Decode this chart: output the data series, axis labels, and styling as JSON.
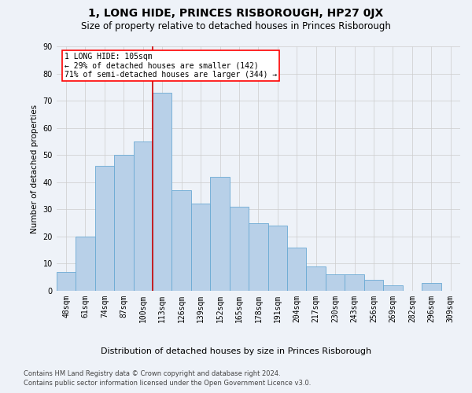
{
  "title": "1, LONG HIDE, PRINCES RISBOROUGH, HP27 0JX",
  "subtitle": "Size of property relative to detached houses in Princes Risborough",
  "xlabel": "Distribution of detached houses by size in Princes Risborough",
  "ylabel": "Number of detached properties",
  "footnote1": "Contains HM Land Registry data © Crown copyright and database right 2024.",
  "footnote2": "Contains public sector information licensed under the Open Government Licence v3.0.",
  "categories": [
    "48sqm",
    "61sqm",
    "74sqm",
    "87sqm",
    "100sqm",
    "113sqm",
    "126sqm",
    "139sqm",
    "152sqm",
    "165sqm",
    "178sqm",
    "191sqm",
    "204sqm",
    "217sqm",
    "230sqm",
    "243sqm",
    "256sqm",
    "269sqm",
    "282sqm",
    "296sqm",
    "309sqm"
  ],
  "values": [
    7,
    20,
    46,
    50,
    55,
    73,
    37,
    32,
    42,
    31,
    25,
    24,
    16,
    9,
    6,
    6,
    4,
    2,
    0,
    3,
    0
  ],
  "bar_color": "#b8d0e8",
  "bar_edge_color": "#6aaad4",
  "bar_edge_width": 0.6,
  "annotation_line_label": "1 LONG HIDE: 105sqm",
  "annotation_text1": "← 29% of detached houses are smaller (142)",
  "annotation_text2": "71% of semi-detached houses are larger (344) →",
  "ylim": [
    0,
    90
  ],
  "yticks": [
    0,
    10,
    20,
    30,
    40,
    50,
    60,
    70,
    80,
    90
  ],
  "grid_color": "#cccccc",
  "background_color": "#eef2f8",
  "title_fontsize": 10,
  "subtitle_fontsize": 8.5,
  "xlabel_fontsize": 8,
  "ylabel_fontsize": 7.5,
  "tick_fontsize": 7,
  "footnote_fontsize": 6,
  "red_line_color": "#cc0000",
  "red_line_x": 4.5
}
